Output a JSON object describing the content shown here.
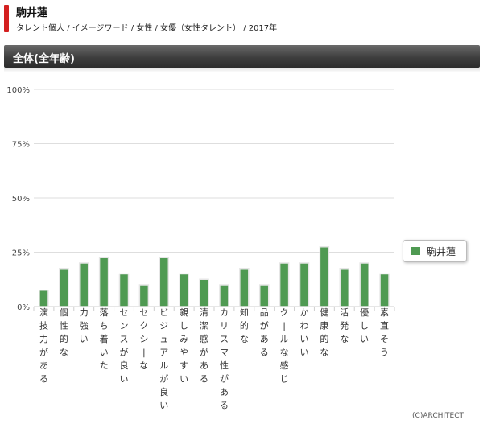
{
  "header": {
    "title": "駒井蓮",
    "breadcrumb": "タレント個人 / イメージワード / 女性 / 女優（女性タレント） / 2017年"
  },
  "section": {
    "title": "全体(全年齢)"
  },
  "footer": {
    "copyright": "(C)ARCHITECT"
  },
  "colors": {
    "bar": "#4f9a52",
    "bar_edge": "#3f8542",
    "accent": "#d42020"
  },
  "chart_data": {
    "type": "bar",
    "title": "",
    "xlabel": "",
    "ylabel": "",
    "ylim": [
      0,
      100
    ],
    "y_ticks": [
      "0%",
      "25%",
      "50%",
      "75%",
      "100%"
    ],
    "grid": true,
    "legend_position": "right",
    "categories": [
      "演技力がある",
      "個性的な",
      "力強い",
      "落ち着いた",
      "センスが良い",
      "セクシーな",
      "ビジュアルが良い",
      "親しみやすい",
      "清潔感がある",
      "カリスマ性がある",
      "知的な",
      "品がある",
      "クールな感じ",
      "かわいい",
      "健康的な",
      "活発な",
      "優しい",
      "素直そう"
    ],
    "series": [
      {
        "name": "駒井蓮",
        "values": [
          7.5,
          17.5,
          20,
          22.5,
          15,
          10,
          22.5,
          15,
          12.5,
          10,
          17.5,
          10,
          20,
          20,
          27.5,
          17.5,
          20,
          15
        ]
      }
    ]
  }
}
